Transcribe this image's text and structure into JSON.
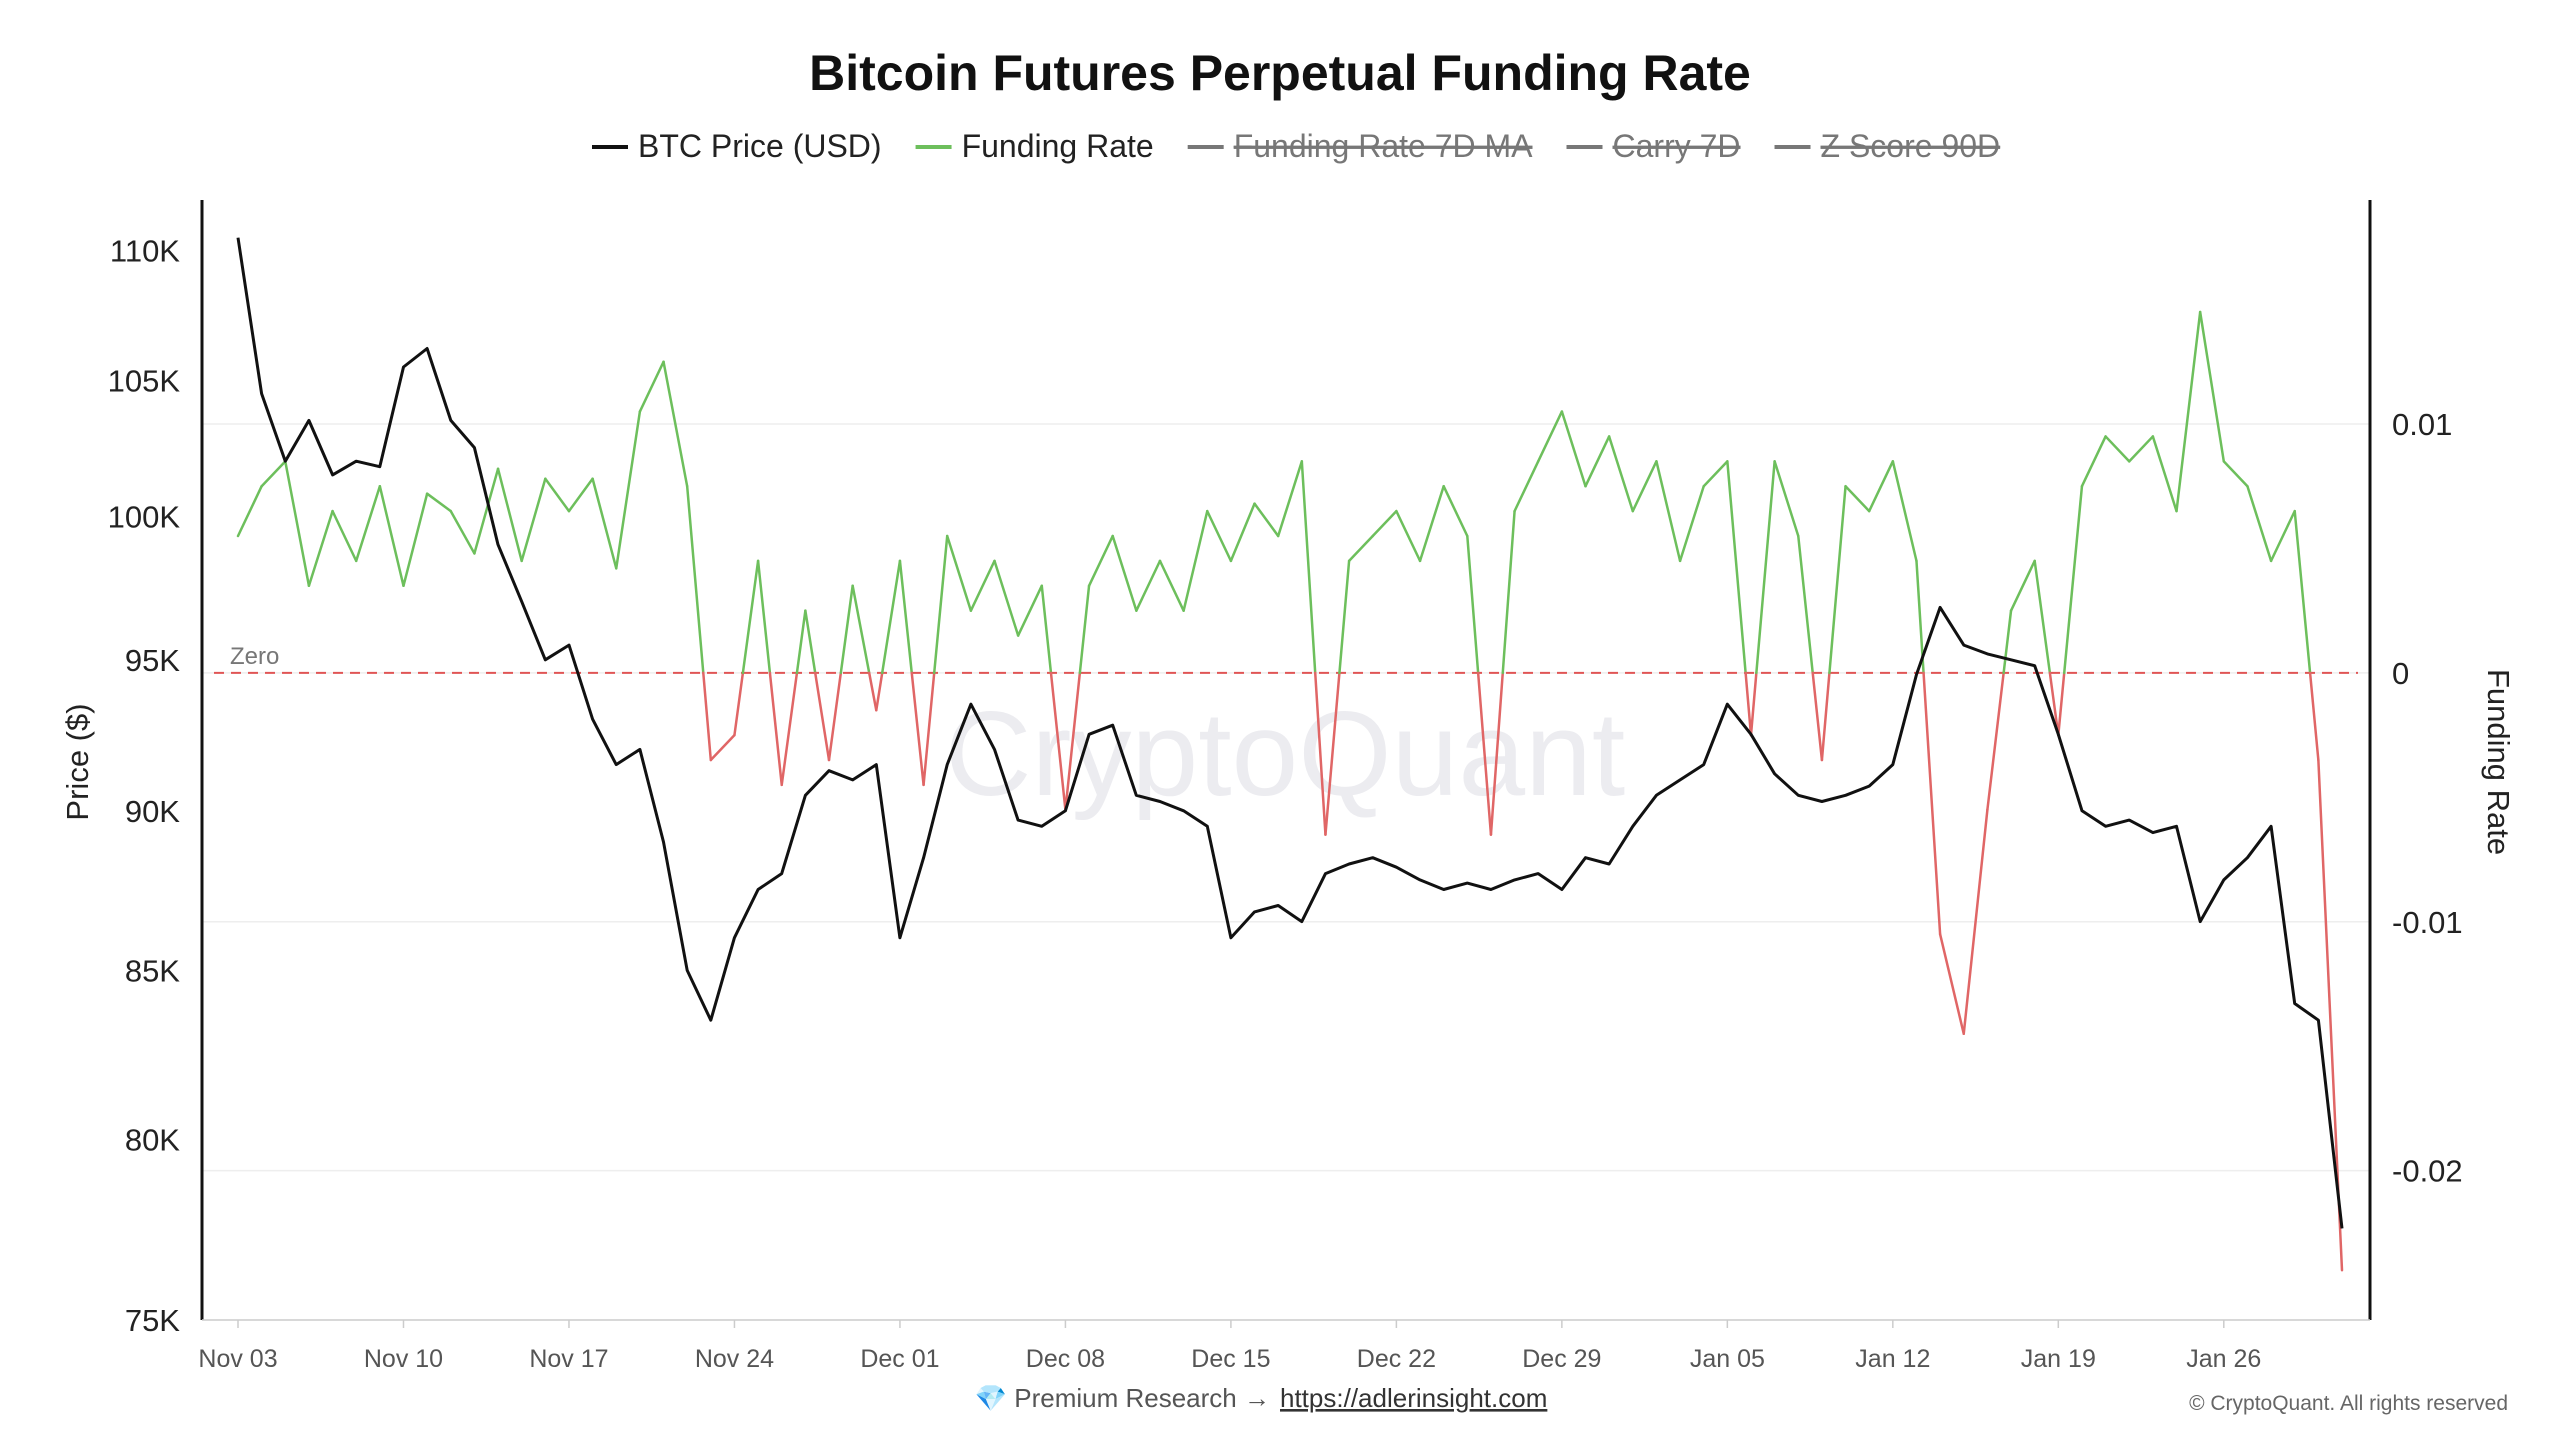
{
  "chart_data": {
    "type": "line",
    "title": "Bitcoin Futures Perpetual Funding Rate",
    "x_ticks": [
      "Nov 03",
      "Nov 10",
      "Nov 17",
      "Nov 24",
      "Dec 01",
      "Dec 08",
      "Dec 15",
      "Dec 22",
      "Dec 29",
      "Jan 05",
      "Jan 12",
      "Jan 19",
      "Jan 26"
    ],
    "x_range": [
      "Nov 03",
      "Jan 31"
    ],
    "y_left": {
      "label": "Price ($)",
      "scale": "log",
      "range": [
        75000,
        112000
      ],
      "ticks": [
        {
          "value": 75000,
          "label": "75K"
        },
        {
          "value": 80000,
          "label": "80K"
        },
        {
          "value": 85000,
          "label": "85K"
        },
        {
          "value": 90000,
          "label": "90K"
        },
        {
          "value": 95000,
          "label": "95K"
        },
        {
          "value": 100000,
          "label": "100K"
        },
        {
          "value": 105000,
          "label": "105K"
        },
        {
          "value": 110000,
          "label": "110K"
        }
      ]
    },
    "y_right": {
      "label": "Funding Rate",
      "range": [
        -0.026,
        0.019
      ],
      "ticks": [
        {
          "value": 0.01,
          "label": "0.01"
        },
        {
          "value": 0,
          "label": "0"
        },
        {
          "value": -0.01,
          "label": "-0.01"
        },
        {
          "value": -0.02,
          "label": "-0.02"
        }
      ]
    },
    "zero_line_label": "Zero",
    "legend": [
      {
        "name": "BTC Price (USD)",
        "color": "#111111",
        "hidden": false
      },
      {
        "name": "Funding Rate",
        "color": "#6dbf5c",
        "hidden": false
      },
      {
        "name": "Funding Rate 7D MA",
        "color": "#777777",
        "hidden": true
      },
      {
        "name": "Carry 7D",
        "color": "#777777",
        "hidden": true
      },
      {
        "name": "Z Score 90D",
        "color": "#777777",
        "hidden": true
      }
    ],
    "colors": {
      "price": "#111111",
      "funding_positive": "#6dbf5c",
      "funding_negative": "#e06666",
      "zero_line": "#e05555",
      "grid": "#eeeeee"
    },
    "series": [
      {
        "name": "BTC Price (USD)",
        "axis": "left",
        "points": [
          [
            "Nov 03",
            110500
          ],
          [
            "Nov 04",
            104500
          ],
          [
            "Nov 05",
            102000
          ],
          [
            "Nov 06",
            103500
          ],
          [
            "Nov 07",
            101500
          ],
          [
            "Nov 08",
            102000
          ],
          [
            "Nov 09",
            101800
          ],
          [
            "Nov 10",
            105500
          ],
          [
            "Nov 11",
            106200
          ],
          [
            "Nov 12",
            103500
          ],
          [
            "Nov 13",
            102500
          ],
          [
            "Nov 14",
            99000
          ],
          [
            "Nov 15",
            97000
          ],
          [
            "Nov 16",
            95000
          ],
          [
            "Nov 17",
            95500
          ],
          [
            "Nov 18",
            93000
          ],
          [
            "Nov 19",
            91500
          ],
          [
            "Nov 20",
            92000
          ],
          [
            "Nov 21",
            89000
          ],
          [
            "Nov 22",
            85000
          ],
          [
            "Nov 23",
            83500
          ],
          [
            "Nov 24",
            86000
          ],
          [
            "Nov 25",
            87500
          ],
          [
            "Nov 26",
            88000
          ],
          [
            "Nov 27",
            90500
          ],
          [
            "Nov 28",
            91300
          ],
          [
            "Nov 29",
            91000
          ],
          [
            "Nov 30",
            91500
          ],
          [
            "Dec 01",
            86000
          ],
          [
            "Dec 02",
            88500
          ],
          [
            "Dec 03",
            91500
          ],
          [
            "Dec 04",
            93500
          ],
          [
            "Dec 05",
            92000
          ],
          [
            "Dec 06",
            89700
          ],
          [
            "Dec 07",
            89500
          ],
          [
            "Dec 08",
            90000
          ],
          [
            "Dec 09",
            92500
          ],
          [
            "Dec 10",
            92800
          ],
          [
            "Dec 11",
            90500
          ],
          [
            "Dec 12",
            90300
          ],
          [
            "Dec 13",
            90000
          ],
          [
            "Dec 14",
            89500
          ],
          [
            "Dec 15",
            86000
          ],
          [
            "Dec 16",
            86800
          ],
          [
            "Dec 17",
            87000
          ],
          [
            "Dec 18",
            86500
          ],
          [
            "Dec 19",
            88000
          ],
          [
            "Dec 20",
            88300
          ],
          [
            "Dec 21",
            88500
          ],
          [
            "Dec 22",
            88200
          ],
          [
            "Dec 23",
            87800
          ],
          [
            "Dec 24",
            87500
          ],
          [
            "Dec 25",
            87700
          ],
          [
            "Dec 26",
            87500
          ],
          [
            "Dec 27",
            87800
          ],
          [
            "Dec 28",
            88000
          ],
          [
            "Dec 29",
            87500
          ],
          [
            "Dec 30",
            88500
          ],
          [
            "Dec 31",
            88300
          ],
          [
            "Jan 01",
            89500
          ],
          [
            "Jan 02",
            90500
          ],
          [
            "Jan 03",
            91000
          ],
          [
            "Jan 04",
            91500
          ],
          [
            "Jan 05",
            93500
          ],
          [
            "Jan 06",
            92500
          ],
          [
            "Jan 07",
            91200
          ],
          [
            "Jan 08",
            90500
          ],
          [
            "Jan 09",
            90300
          ],
          [
            "Jan 10",
            90500
          ],
          [
            "Jan 11",
            90800
          ],
          [
            "Jan 12",
            91500
          ],
          [
            "Jan 13",
            94500
          ],
          [
            "Jan 14",
            96800
          ],
          [
            "Jan 15",
            95500
          ],
          [
            "Jan 16",
            95200
          ],
          [
            "Jan 17",
            95000
          ],
          [
            "Jan 18",
            94800
          ],
          [
            "Jan 19",
            92500
          ],
          [
            "Jan 20",
            90000
          ],
          [
            "Jan 21",
            89500
          ],
          [
            "Jan 22",
            89700
          ],
          [
            "Jan 23",
            89300
          ],
          [
            "Jan 24",
            89500
          ],
          [
            "Jan 25",
            86500
          ],
          [
            "Jan 26",
            87800
          ],
          [
            "Jan 27",
            88500
          ],
          [
            "Jan 28",
            89500
          ],
          [
            "Jan 29",
            84000
          ],
          [
            "Jan 30",
            83500
          ],
          [
            "Jan 31",
            77500
          ]
        ]
      },
      {
        "name": "Funding Rate",
        "axis": "right",
        "points": [
          [
            "Nov 03",
            0.0055
          ],
          [
            "Nov 04",
            0.0075
          ],
          [
            "Nov 05",
            0.0085
          ],
          [
            "Nov 06",
            0.0035
          ],
          [
            "Nov 07",
            0.0065
          ],
          [
            "Nov 08",
            0.0045
          ],
          [
            "Nov 09",
            0.0075
          ],
          [
            "Nov 10",
            0.0035
          ],
          [
            "Nov 11",
            0.0072
          ],
          [
            "Nov 12",
            0.0065
          ],
          [
            "Nov 13",
            0.0048
          ],
          [
            "Nov 14",
            0.0082
          ],
          [
            "Nov 15",
            0.0045
          ],
          [
            "Nov 16",
            0.0078
          ],
          [
            "Nov 17",
            0.0065
          ],
          [
            "Nov 18",
            0.0078
          ],
          [
            "Nov 19",
            0.0042
          ],
          [
            "Nov 20",
            0.0105
          ],
          [
            "Nov 21",
            0.0125
          ],
          [
            "Nov 22",
            0.0075
          ],
          [
            "Nov 23",
            -0.0035
          ],
          [
            "Nov 24",
            -0.0025
          ],
          [
            "Nov 25",
            0.0045
          ],
          [
            "Nov 26",
            -0.0045
          ],
          [
            "Nov 27",
            0.0025
          ],
          [
            "Nov 28",
            -0.0035
          ],
          [
            "Nov 29",
            0.0035
          ],
          [
            "Nov 30",
            -0.0015
          ],
          [
            "Dec 01",
            0.0045
          ],
          [
            "Dec 02",
            -0.0045
          ],
          [
            "Dec 03",
            0.0055
          ],
          [
            "Dec 04",
            0.0025
          ],
          [
            "Dec 05",
            0.0045
          ],
          [
            "Dec 06",
            0.0015
          ],
          [
            "Dec 07",
            0.0035
          ],
          [
            "Dec 08",
            -0.0055
          ],
          [
            "Dec 09",
            0.0035
          ],
          [
            "Dec 10",
            0.0055
          ],
          [
            "Dec 11",
            0.0025
          ],
          [
            "Dec 12",
            0.0045
          ],
          [
            "Dec 13",
            0.0025
          ],
          [
            "Dec 14",
            0.0065
          ],
          [
            "Dec 15",
            0.0045
          ],
          [
            "Dec 16",
            0.0068
          ],
          [
            "Dec 17",
            0.0055
          ],
          [
            "Dec 18",
            0.0085
          ],
          [
            "Dec 19",
            -0.0065
          ],
          [
            "Dec 20",
            0.0045
          ],
          [
            "Dec 21",
            0.0055
          ],
          [
            "Dec 22",
            0.0065
          ],
          [
            "Dec 23",
            0.0045
          ],
          [
            "Dec 24",
            0.0075
          ],
          [
            "Dec 25",
            0.0055
          ],
          [
            "Dec 26",
            -0.0065
          ],
          [
            "Dec 27",
            0.0065
          ],
          [
            "Dec 28",
            0.0085
          ],
          [
            "Dec 29",
            0.0105
          ],
          [
            "Dec 30",
            0.0075
          ],
          [
            "Dec 31",
            0.0095
          ],
          [
            "Jan 01",
            0.0065
          ],
          [
            "Jan 02",
            0.0085
          ],
          [
            "Jan 03",
            0.0045
          ],
          [
            "Jan 04",
            0.0075
          ],
          [
            "Jan 05",
            0.0085
          ],
          [
            "Jan 06",
            -0.0025
          ],
          [
            "Jan 07",
            0.0085
          ],
          [
            "Jan 08",
            0.0055
          ],
          [
            "Jan 09",
            -0.0035
          ],
          [
            "Jan 10",
            0.0075
          ],
          [
            "Jan 11",
            0.0065
          ],
          [
            "Jan 12",
            0.0085
          ],
          [
            "Jan 13",
            0.0045
          ],
          [
            "Jan 14",
            -0.0105
          ],
          [
            "Jan 15",
            -0.0145
          ],
          [
            "Jan 16",
            -0.0055
          ],
          [
            "Jan 17",
            0.0025
          ],
          [
            "Jan 18",
            0.0045
          ],
          [
            "Jan 19",
            -0.0025
          ],
          [
            "Jan 20",
            0.0075
          ],
          [
            "Jan 21",
            0.0095
          ],
          [
            "Jan 22",
            0.0085
          ],
          [
            "Jan 23",
            0.0095
          ],
          [
            "Jan 24",
            0.0065
          ],
          [
            "Jan 25",
            0.0145
          ],
          [
            "Jan 26",
            0.0085
          ],
          [
            "Jan 27",
            0.0075
          ],
          [
            "Jan 28",
            0.0045
          ],
          [
            "Jan 29",
            0.0065
          ],
          [
            "Jan 30",
            -0.0035
          ],
          [
            "Jan 31",
            -0.024
          ]
        ]
      }
    ]
  },
  "footer": {
    "research_prefix": "💎 Premium Research →",
    "research_link": "https://adlerinsight.com",
    "copyright": "© CryptoQuant. All rights reserved"
  },
  "watermark": "CryptoQuant"
}
